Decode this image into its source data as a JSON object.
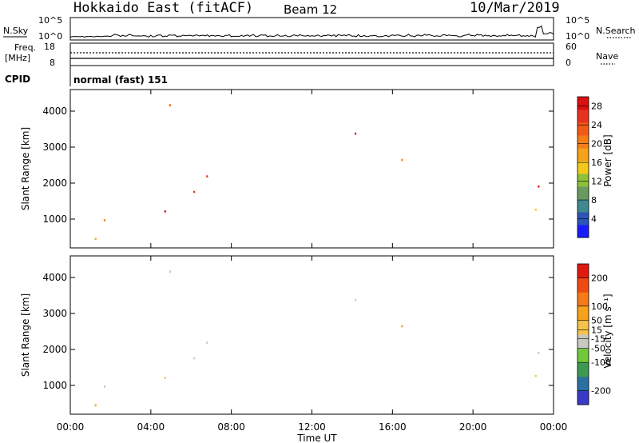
{
  "header": {
    "title": "Hokkaido East (fitACF)",
    "beam": "Beam 12",
    "date": "10/Mar/2019"
  },
  "strips": {
    "nsky_label": "N.Sky",
    "nsearch_label": "N.Search",
    "noise_ticks": [
      "10^5",
      "10^0"
    ],
    "freq_label": "Freq.",
    "freq_unit": "[MHz]",
    "freq_ticks": [
      "18",
      "8"
    ],
    "nave_label": "Nave",
    "nave_ticks": [
      "60",
      "0"
    ],
    "cpid_label": "CPID",
    "cpid_value": "normal (fast) 151"
  },
  "colors": {
    "power": [
      "#1a1aff",
      "#2a55b8",
      "#3e8a90",
      "#6a9a60",
      "#8fc03a",
      "#f2c81c",
      "#f6a21a",
      "#f57e18",
      "#f25a18",
      "#e83220",
      "#dd1010"
    ],
    "velocity": [
      "#e01a10",
      "#f04a14",
      "#f67a18",
      "#f6a21a",
      "#f7c24a",
      "#c8c8c0",
      "#70c83a",
      "#3c9a50",
      "#2a70a0",
      "#3a3ac8"
    ]
  },
  "chart_data": [
    {
      "type": "heatmap",
      "name": "power",
      "xlabel": "Time UT",
      "ylabel": "Slant Range [km]",
      "xticks": [
        "00:00",
        "04:00",
        "08:00",
        "12:00",
        "16:00",
        "20:00",
        "00:00"
      ],
      "yticks": [
        1000,
        2000,
        3000,
        4000
      ],
      "xlim_hours": [
        0,
        24
      ],
      "ylim_km": [
        200,
        4600
      ],
      "colorbar_label": "Power [dB]",
      "colorbar_ticks": [
        4,
        8,
        12,
        16,
        20,
        24,
        28
      ],
      "colorbar_range": [
        0,
        30
      ]
    },
    {
      "type": "heatmap",
      "name": "velocity",
      "xlabel": "Time UT",
      "ylabel": "Slant Range [km]",
      "xticks": [
        "00:00",
        "04:00",
        "08:00",
        "12:00",
        "16:00",
        "20:00",
        "00:00"
      ],
      "yticks": [
        1000,
        2000,
        3000,
        4000
      ],
      "xlim_hours": [
        0,
        24
      ],
      "ylim_km": [
        200,
        4600
      ],
      "colorbar_label": "Velocity [m s⁻¹]",
      "colorbar_ticks": [
        200,
        100,
        50,
        15,
        -15,
        -50,
        -100,
        -200
      ],
      "colorbar_range": [
        -250,
        250
      ]
    }
  ]
}
